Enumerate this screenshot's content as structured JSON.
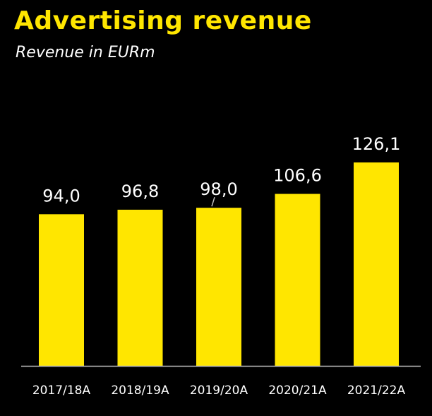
{
  "chart_data": {
    "type": "bar",
    "title": "Advertising revenue",
    "subtitle": "Revenue in EURm",
    "categories": [
      "2017/18A",
      "2018/19A",
      "2019/20A",
      "2020/21A",
      "2021/22A"
    ],
    "values": [
      94.0,
      96.8,
      98.0,
      106.6,
      126.1
    ],
    "value_labels": [
      "94,0",
      "96,8",
      "98,0",
      "106,6",
      "126,1"
    ],
    "xlabel": "",
    "ylabel": "",
    "ylim": [
      0,
      145
    ],
    "grid": false,
    "legend": "none",
    "colors": {
      "background": "#000000",
      "bar": "#FFE600",
      "title": "#FFE600",
      "text": "#FFFFFF",
      "axis": "#BFBFBF"
    }
  }
}
